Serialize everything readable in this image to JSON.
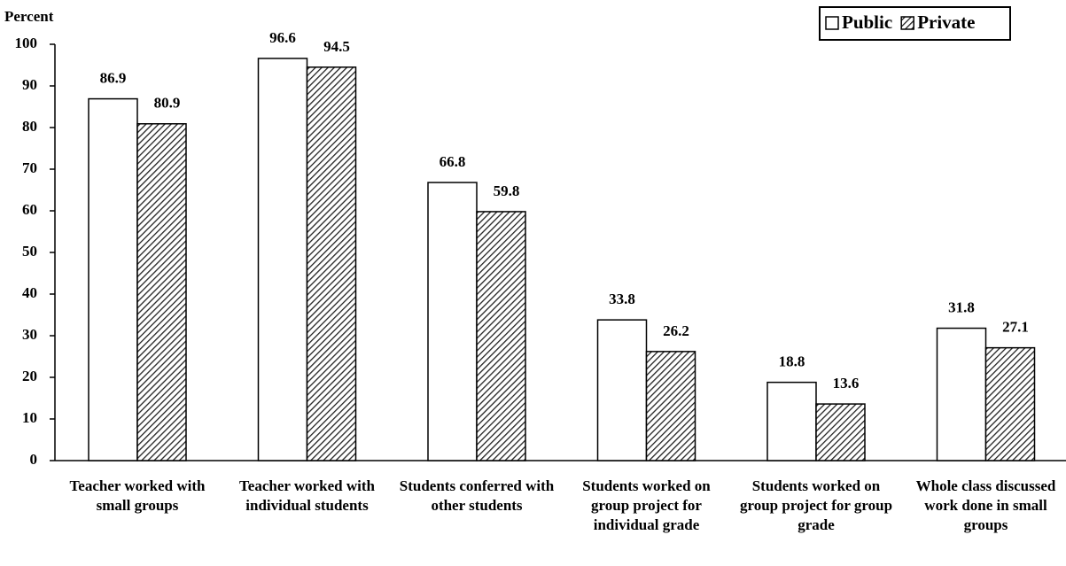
{
  "chart_data": {
    "type": "bar",
    "y_axis_label": "Percent",
    "categories": [
      "Teacher worked with small groups",
      "Teacher worked with individual students",
      "Students conferred with other students",
      "Students worked on group project for individual grade",
      "Students worked on group project for group grade",
      "Whole class discussed work done in small groups"
    ],
    "series": [
      {
        "name": "Public",
        "color": "#ffffff",
        "values": [
          86.9,
          96.6,
          66.8,
          33.8,
          18.8,
          31.8
        ]
      },
      {
        "name": "Private",
        "color": "hatch",
        "values": [
          80.9,
          94.5,
          59.8,
          26.2,
          13.6,
          27.1
        ]
      }
    ],
    "ylim": [
      0,
      100
    ],
    "yticks": [
      0,
      10,
      20,
      30,
      40,
      50,
      60,
      70,
      80,
      90,
      100
    ],
    "grid": false,
    "legend": "top-right"
  }
}
